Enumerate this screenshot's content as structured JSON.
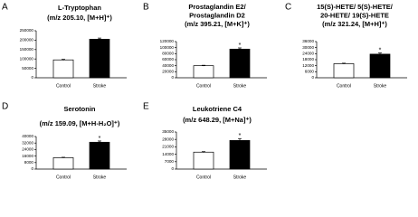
{
  "chart_data": [
    {
      "type": "bar",
      "label": "A",
      "title": [
        "L-Tryptophan",
        "(m/z 205.10, [M+H]⁺)"
      ],
      "categories": [
        "Control",
        "Stroke"
      ],
      "values": [
        95000,
        205000
      ],
      "errors": [
        3000,
        6000
      ],
      "colors": [
        "#ffffff",
        "#000000"
      ],
      "ylim": [
        0,
        250000
      ],
      "yticks": [
        0,
        50000,
        100000,
        150000,
        200000,
        250000
      ]
    },
    {
      "type": "bar",
      "label": "B",
      "title": [
        "Prostaglandin E2/",
        "Prostaglandin D2",
        "(m/z 395.21, [M+K]⁺)"
      ],
      "categories": [
        "Control",
        "Stroke"
      ],
      "values": [
        40000,
        95000
      ],
      "errors": [
        1500,
        4000
      ],
      "annotation": "*",
      "colors": [
        "#ffffff",
        "#000000"
      ],
      "ylim": [
        0,
        120000
      ],
      "yticks": [
        0,
        20000,
        40000,
        60000,
        80000,
        100000,
        120000
      ]
    },
    {
      "type": "bar",
      "label": "C",
      "title": [
        "15(S)-HETE/ 5(S)-HETE/",
        "20-HETE/ 19(S)-HETE",
        "(m/z 321.24, [M+H]⁺)"
      ],
      "categories": [
        "Control",
        "Stroke"
      ],
      "values": [
        14000,
        23500
      ],
      "errors": [
        500,
        1200
      ],
      "annotation": "*",
      "colors": [
        "#ffffff",
        "#000000"
      ],
      "ylim": [
        0,
        36000
      ],
      "yticks": [
        0,
        6000,
        12000,
        18000,
        24000,
        30000,
        36000
      ]
    },
    {
      "type": "bar",
      "label": "D",
      "title": [
        "Serotonin",
        "(m/z 159.09, [M+H-H₂O]⁺)"
      ],
      "categories": [
        "Control",
        "Stroke"
      ],
      "values": [
        14000,
        33000
      ],
      "errors": [
        500,
        1500
      ],
      "annotation": "*",
      "colors": [
        "#ffffff",
        "#000000"
      ],
      "ylim": [
        0,
        40000
      ],
      "yticks": [
        0,
        8000,
        16000,
        24000,
        32000,
        40000
      ]
    },
    {
      "type": "bar",
      "label": "E",
      "title": [
        "Leukotriene C4",
        "(m/z 648.29, [M+Na]⁺)"
      ],
      "categories": [
        "Control",
        "Stroke"
      ],
      "values": [
        16000,
        27000
      ],
      "errors": [
        500,
        1800
      ],
      "annotation": "*",
      "colors": [
        "#ffffff",
        "#000000"
      ],
      "ylim": [
        0,
        35000
      ],
      "yticks": [
        0,
        7000,
        14000,
        21000,
        28000,
        35000
      ]
    }
  ]
}
